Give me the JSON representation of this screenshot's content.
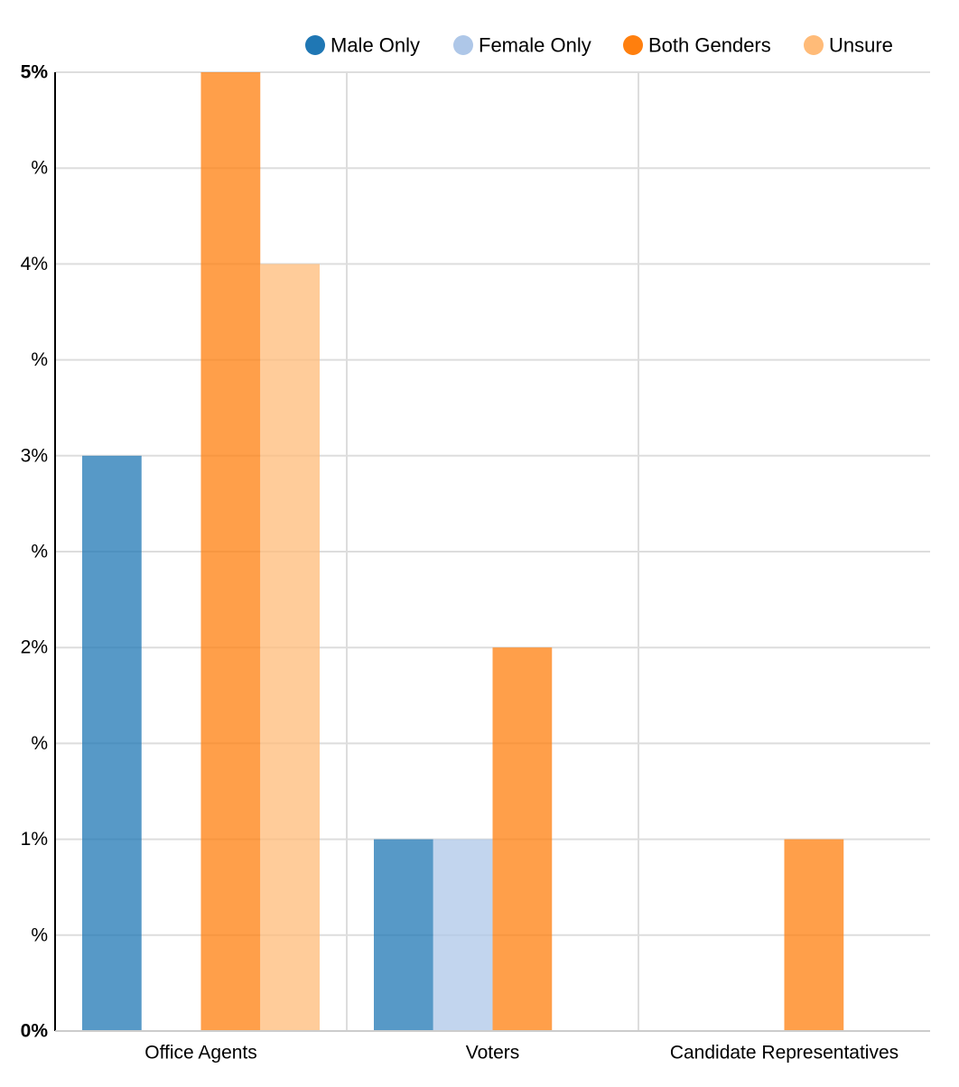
{
  "chart_data": {
    "type": "bar",
    "categories": [
      "Office Agents",
      "Voters",
      "Candidate Representatives"
    ],
    "series": [
      {
        "name": "Male Only",
        "color": "#1f77b4",
        "values": [
          3,
          1,
          0
        ]
      },
      {
        "name": "Female Only",
        "color": "#aec7e8",
        "values": [
          0,
          1,
          0
        ]
      },
      {
        "name": "Both Genders",
        "color": "#ff7f0e",
        "values": [
          5,
          2,
          1
        ]
      },
      {
        "name": "Unsure",
        "color": "#ffbb78",
        "values": [
          4,
          0,
          0
        ]
      }
    ],
    "y_ticks": [
      {
        "value": 0,
        "label": "0%",
        "bold": true
      },
      {
        "value": 0.5,
        "label": "%",
        "bold": false
      },
      {
        "value": 1,
        "label": "1%",
        "bold": false
      },
      {
        "value": 1.5,
        "label": "%",
        "bold": false
      },
      {
        "value": 2,
        "label": "2%",
        "bold": false
      },
      {
        "value": 2.5,
        "label": "%",
        "bold": false
      },
      {
        "value": 3,
        "label": "3%",
        "bold": false
      },
      {
        "value": 3.5,
        "label": "%",
        "bold": false
      },
      {
        "value": 4,
        "label": "4%",
        "bold": false
      },
      {
        "value": 4.5,
        "label": "%",
        "bold": false
      },
      {
        "value": 5,
        "label": "5%",
        "bold": true
      }
    ],
    "ylim": [
      0,
      5
    ],
    "grid": true,
    "legend_position": "top-right",
    "title": "",
    "xlabel": "",
    "ylabel": ""
  }
}
